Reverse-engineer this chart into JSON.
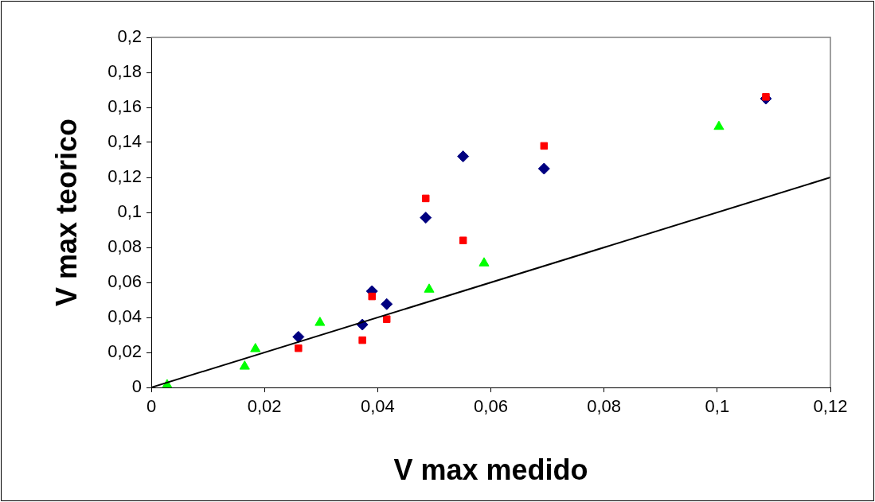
{
  "chart_data": {
    "type": "scatter",
    "xlabel": "V max medido",
    "ylabel": "V max teorico",
    "xlim": [
      0,
      0.12
    ],
    "ylim": [
      0,
      0.2
    ],
    "xticks": [
      0,
      {
        "value": 0.02,
        "label": "0,02"
      },
      {
        "value": 0.04,
        "label": "0,04"
      },
      {
        "value": 0.06,
        "label": "0,06"
      },
      {
        "value": 0.08,
        "label": "0,08"
      },
      {
        "value": 0.1,
        "label": "0,1"
      },
      {
        "value": 0.12,
        "label": "0,12"
      }
    ],
    "yticks": [
      0,
      {
        "value": 0.02,
        "label": "0,02"
      },
      {
        "value": 0.04,
        "label": "0,04"
      },
      {
        "value": 0.06,
        "label": "0,06"
      },
      {
        "value": 0.08,
        "label": "0,08"
      },
      {
        "value": 0.1,
        "label": "0,1"
      },
      {
        "value": 0.12,
        "label": "0,12"
      },
      {
        "value": 0.14,
        "label": "0,14"
      },
      {
        "value": 0.16,
        "label": "0,16"
      },
      {
        "value": 0.18,
        "label": "0,18"
      },
      {
        "value": 0.2,
        "label": "0,2"
      }
    ],
    "grid": false,
    "legend": false,
    "series": [
      {
        "type": "line",
        "color": "#000000",
        "marker": "none",
        "x": [
          0,
          0.12
        ],
        "values": [
          0,
          0.12
        ]
      },
      {
        "color": "#ff0000",
        "marker": "square",
        "x": [
          0.026,
          0.0373,
          0.039,
          0.0416,
          0.0485,
          0.0551,
          0.0694,
          0.1086
        ],
        "values": [
          0.0224,
          0.027,
          0.052,
          0.039,
          0.108,
          0.084,
          0.138,
          0.166
        ]
      },
      {
        "color": "#000080",
        "marker": "diamond",
        "x": [
          0.026,
          0.0373,
          0.039,
          0.0416,
          0.0485,
          0.0551,
          0.0694,
          0.1086
        ],
        "values": [
          0.0289,
          0.0359,
          0.055,
          0.0476,
          0.097,
          0.132,
          0.125,
          0.165
        ]
      },
      {
        "color": "#00ff00",
        "marker": "triangle",
        "x": [
          0.0028,
          0.0165,
          0.0184,
          0.0298,
          0.0491,
          0.0588,
          0.1003
        ],
        "values": [
          0.0014,
          0.012,
          0.022,
          0.037,
          0.056,
          0.071,
          0.149
        ]
      }
    ]
  }
}
